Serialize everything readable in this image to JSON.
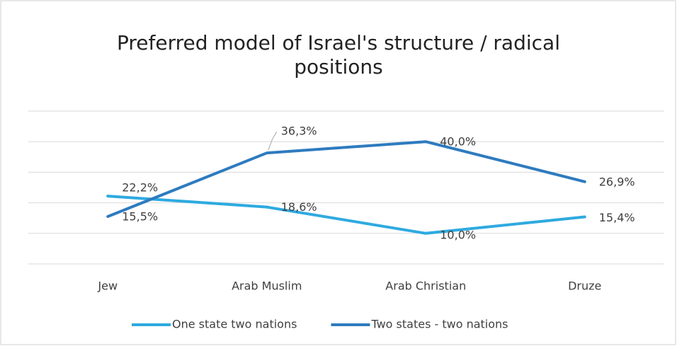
{
  "chart_data": {
    "type": "line",
    "title": "Preferred model of Israel's structure / radical positions",
    "categories": [
      "Jew",
      "Arab Muslim",
      "Arab Christian",
      "Druze"
    ],
    "series": [
      {
        "name": "One state two nations",
        "color": "#2eaae1",
        "values": [
          22.2,
          18.6,
          10.0,
          15.4
        ],
        "value_labels": [
          "22,2%",
          "18,6%",
          "10,0%",
          "15,4%"
        ]
      },
      {
        "name": "Two states - two nations",
        "color": "#2e7bbf",
        "values": [
          15.5,
          36.3,
          40.0,
          26.9
        ],
        "value_labels": [
          "15,5%",
          "36,3%",
          "40,0%",
          "26,9%"
        ]
      }
    ],
    "ylim": [
      0,
      50
    ],
    "yticks": [
      0,
      10,
      20,
      30,
      40,
      50
    ],
    "grid": true,
    "legend": "bottom"
  }
}
